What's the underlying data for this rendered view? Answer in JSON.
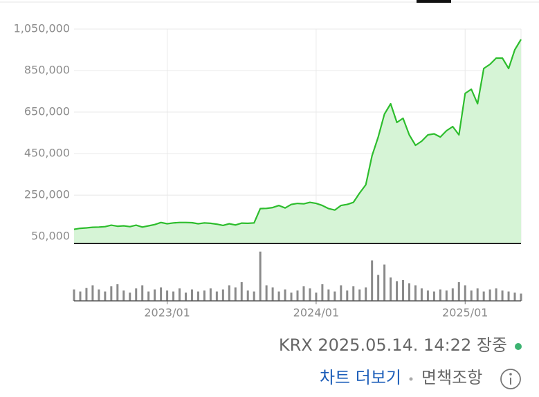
{
  "chart_data": [
    {
      "type": "area",
      "categories": [
        null,
        null,
        null,
        null,
        null,
        null,
        null,
        null,
        null,
        null,
        null,
        null,
        null,
        null,
        null,
        "2023/01",
        null,
        null,
        null,
        null,
        null,
        null,
        null,
        null,
        null,
        null,
        null,
        null,
        null,
        null,
        null,
        null,
        null,
        null,
        null,
        null,
        null,
        null,
        null,
        "2024/01",
        null,
        null,
        null,
        null,
        null,
        null,
        null,
        null,
        null,
        null,
        null,
        null,
        null,
        null,
        null,
        null,
        null,
        null,
        null,
        null,
        null,
        null,
        null,
        "2025/01",
        null,
        null,
        null,
        null,
        null,
        null,
        null,
        null,
        null
      ],
      "values": [
        85000,
        90000,
        92000,
        95000,
        96000,
        98000,
        105000,
        100000,
        102000,
        98000,
        105000,
        96000,
        102000,
        108000,
        118000,
        112000,
        116000,
        118000,
        118000,
        117000,
        112000,
        116000,
        114000,
        110000,
        104000,
        112000,
        106000,
        115000,
        114000,
        116000,
        185000,
        186000,
        190000,
        200000,
        188000,
        205000,
        210000,
        208000,
        215000,
        210000,
        200000,
        185000,
        178000,
        200000,
        205000,
        215000,
        260000,
        300000,
        440000,
        530000,
        640000,
        690000,
        600000,
        620000,
        540000,
        490000,
        510000,
        540000,
        545000,
        530000,
        560000,
        580000,
        540000,
        740000,
        760000,
        690000,
        860000,
        880000,
        910000,
        910000,
        860000,
        950000,
        1000000
      ],
      "color": "#2dbd2d",
      "fill": "#d6f4d6",
      "ylim": [
        17000,
        1050000
      ],
      "yticks": [
        {
          "value": 50000,
          "label": "50,000"
        },
        {
          "value": 250000,
          "label": "250,000"
        },
        {
          "value": 450000,
          "label": "450,000"
        },
        {
          "value": 650000,
          "label": "650,000"
        },
        {
          "value": 850000,
          "label": "850,000"
        },
        {
          "value": 1050000,
          "label": "1,050,000"
        }
      ],
      "grid": true
    },
    {
      "type": "bar",
      "values": [
        22,
        18,
        25,
        30,
        22,
        18,
        28,
        32,
        20,
        16,
        24,
        30,
        18,
        22,
        26,
        20,
        18,
        24,
        16,
        22,
        18,
        20,
        24,
        18,
        22,
        30,
        26,
        36,
        20,
        18,
        95,
        30,
        26,
        18,
        22,
        16,
        20,
        28,
        24,
        16,
        32,
        22,
        18,
        30,
        20,
        28,
        22,
        26,
        78,
        50,
        70,
        45,
        38,
        40,
        34,
        30,
        24,
        20,
        18,
        22,
        20,
        24,
        36,
        30,
        20,
        24,
        18,
        22,
        24,
        20,
        18,
        16,
        14
      ],
      "color": "#8a8a8a",
      "ylim": [
        0,
        100
      ]
    }
  ],
  "footer": {
    "timestamp": "KRX 2025.05.14. 14:22 장중",
    "more_link": "차트 더보기",
    "disclaimer": "면책조항"
  }
}
